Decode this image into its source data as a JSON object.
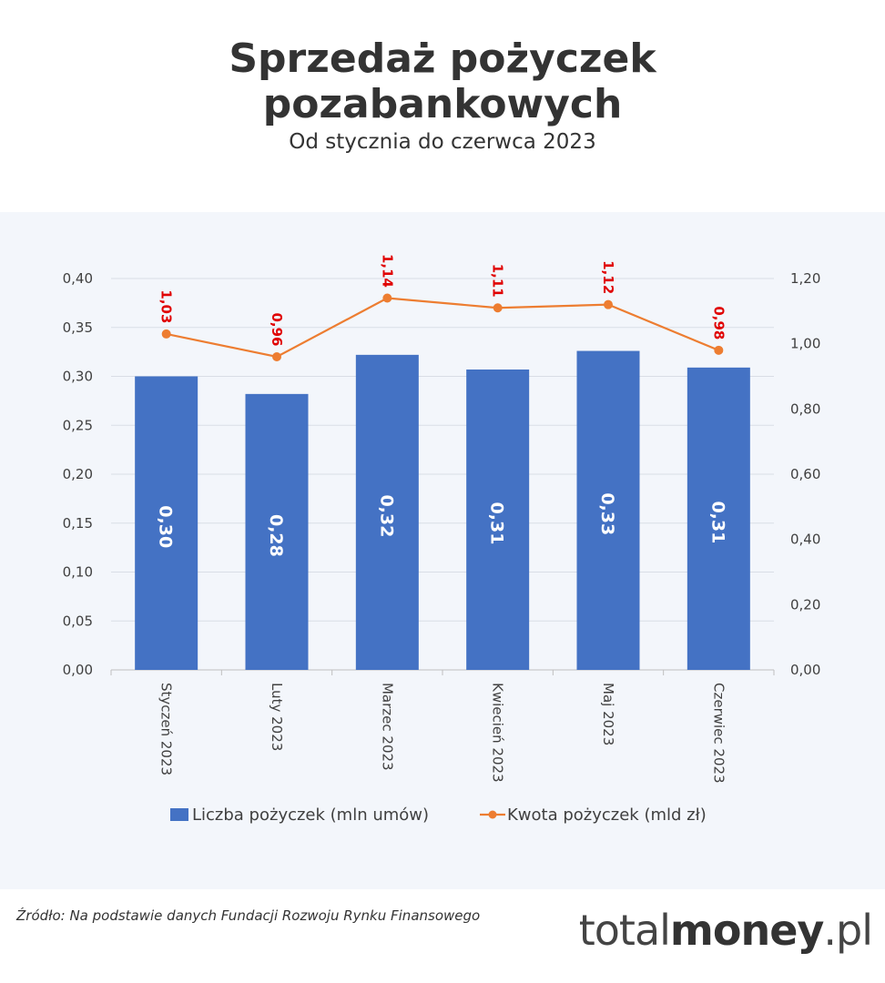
{
  "header": {
    "title_line1": "Sprzedaż pożyczek",
    "title_line2": "pozabankowych",
    "subtitle": "Od stycznia do czerwca 2023"
  },
  "footer": {
    "source": "Źródło: Na podstawie danych Fundacji Rozwoju Rynku Finansowego",
    "logo_part1": "total",
    "logo_part2": "money",
    "logo_part3": ".pl"
  },
  "colors": {
    "bar": "#4472c4",
    "line": "#ed7d31",
    "line_label": "#e00000",
    "panel": "#f3f6fb"
  },
  "chart_data": {
    "type": "bar",
    "categories": [
      "Styczeń 2023",
      "Luty 2023",
      "Marzec 2023",
      "Kwiecień 2023",
      "Maj 2023",
      "Czerwiec 2023"
    ],
    "series": [
      {
        "name": "Liczba pożyczek (mln umów)",
        "type": "bar",
        "axis": "left",
        "values": [
          0.3,
          0.28,
          0.32,
          0.31,
          0.33,
          0.31
        ],
        "bar_heights": [
          0.3,
          0.282,
          0.322,
          0.307,
          0.326,
          0.309
        ],
        "labels": [
          "0,30",
          "0,28",
          "0,32",
          "0,31",
          "0,33",
          "0,31"
        ]
      },
      {
        "name": "Kwota pożyczek (mld zł)",
        "type": "line",
        "axis": "right",
        "values": [
          1.03,
          0.96,
          1.14,
          1.11,
          1.12,
          0.98
        ],
        "labels": [
          "1,03",
          "0,96",
          "1,14",
          "1,11",
          "1,12",
          "0,98"
        ]
      }
    ],
    "y_left": {
      "min": 0,
      "max": 0.4,
      "ticks": [
        "0,00",
        "0,05",
        "0,10",
        "0,15",
        "0,20",
        "0,25",
        "0,30",
        "0,35",
        "0,40"
      ]
    },
    "y_right": {
      "min": 0,
      "max": 1.2,
      "ticks": [
        "0,00",
        "0,20",
        "0,40",
        "0,60",
        "0,80",
        "1,00",
        "1,20"
      ]
    },
    "grid": true,
    "legend": "bottom"
  }
}
